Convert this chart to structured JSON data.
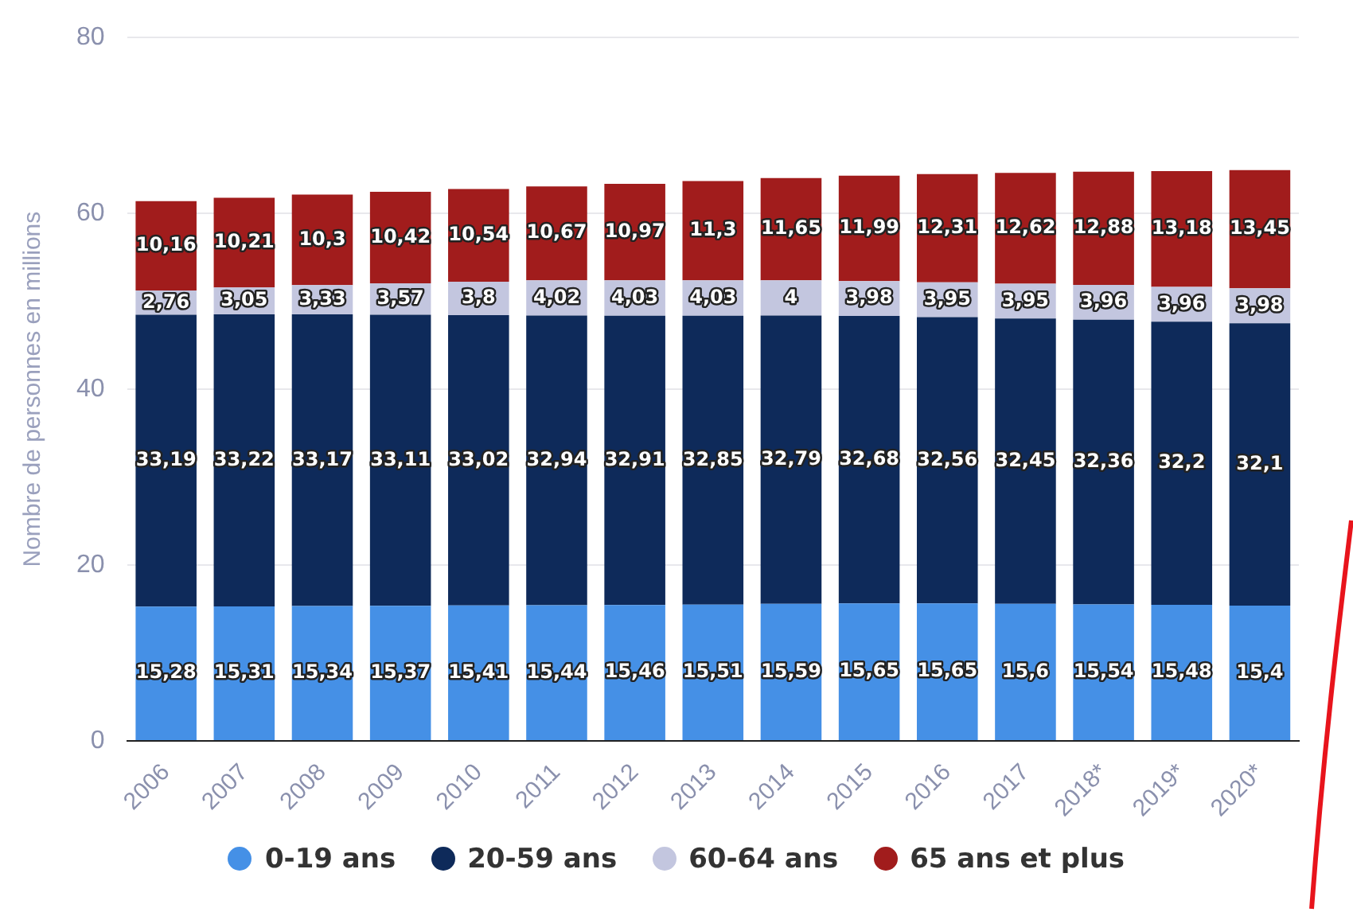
{
  "chart_data": {
    "type": "bar",
    "stacked": true,
    "ylabel": "Nombre de personnes en millions",
    "categories": [
      "2006",
      "2007",
      "2008",
      "2009",
      "2010",
      "2011",
      "2012",
      "2013",
      "2014",
      "2015",
      "2016",
      "2017",
      "2018*",
      "2019*",
      "2020*"
    ],
    "series": [
      {
        "name": "0-19 ans",
        "color": "#4590e6",
        "values": [
          15.28,
          15.31,
          15.34,
          15.37,
          15.41,
          15.44,
          15.46,
          15.51,
          15.59,
          15.65,
          15.65,
          15.6,
          15.54,
          15.48,
          15.4
        ],
        "value_labels": [
          "15,28",
          "15,31",
          "15,34",
          "15,37",
          "15,41",
          "15,44",
          "15,46",
          "15,51",
          "15,59",
          "15,65",
          "15,65",
          "15,6",
          "15,54",
          "15,48",
          "15,4"
        ]
      },
      {
        "name": "20-59 ans",
        "color": "#0e2a5a",
        "values": [
          33.19,
          33.22,
          33.17,
          33.11,
          33.02,
          32.94,
          32.91,
          32.85,
          32.79,
          32.68,
          32.56,
          32.45,
          32.36,
          32.2,
          32.1
        ],
        "value_labels": [
          "33,19",
          "33,22",
          "33,17",
          "33,11",
          "33,02",
          "32,94",
          "32,91",
          "32,85",
          "32,79",
          "32,68",
          "32,56",
          "32,45",
          "32,36",
          "32,2",
          "32,1"
        ]
      },
      {
        "name": "60-64 ans",
        "color": "#c3c6df",
        "values": [
          2.76,
          3.05,
          3.33,
          3.57,
          3.8,
          4.02,
          4.03,
          4.03,
          4,
          3.98,
          3.95,
          3.95,
          3.96,
          3.96,
          3.98
        ],
        "value_labels": [
          "2,76",
          "3,05",
          "3,33",
          "3,57",
          "3,8",
          "4,02",
          "4,03",
          "4,03",
          "4",
          "3,98",
          "3,95",
          "3,95",
          "3,96",
          "3,96",
          "3,98"
        ]
      },
      {
        "name": "65 ans et plus",
        "color": "#a11c1c",
        "values": [
          10.16,
          10.21,
          10.3,
          10.42,
          10.54,
          10.67,
          10.97,
          11.3,
          11.65,
          11.99,
          12.31,
          12.62,
          12.88,
          13.18,
          13.45
        ],
        "value_labels": [
          "10,16",
          "10,21",
          "10,3",
          "10,42",
          "10,54",
          "10,67",
          "10,97",
          "11,3",
          "11,65",
          "11,99",
          "12,31",
          "12,62",
          "12,88",
          "13,18",
          "13,45"
        ]
      }
    ],
    "ylim": [
      0,
      80
    ],
    "yticks": [
      0,
      20,
      40,
      60,
      80
    ],
    "grid": "y",
    "legend": "bottom"
  }
}
